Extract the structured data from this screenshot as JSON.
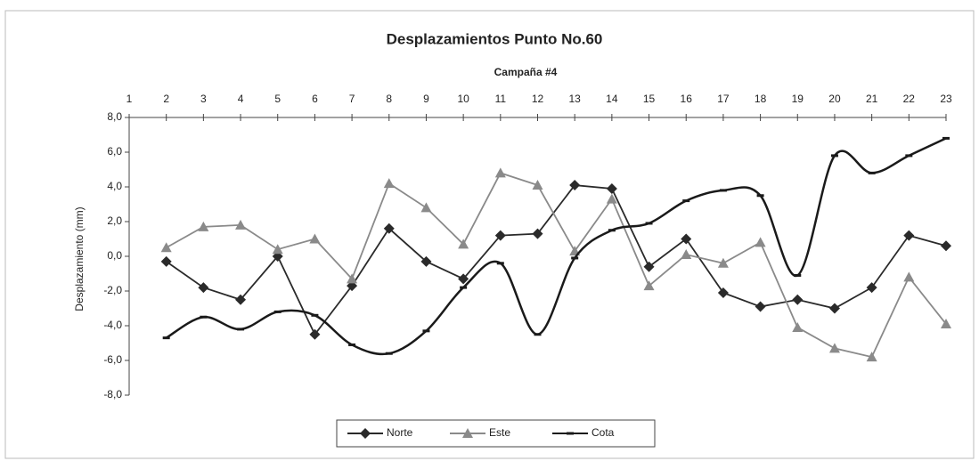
{
  "chart_data": {
    "type": "line",
    "title": "Desplazamientos Punto No.60",
    "x_label": "Campaña #4",
    "y_label": "Desplazamiento (mm)",
    "x": [
      2,
      3,
      4,
      5,
      6,
      7,
      8,
      9,
      10,
      11,
      12,
      13,
      14,
      15,
      16,
      17,
      18,
      19,
      20,
      21,
      22,
      23
    ],
    "xlim": [
      1,
      23
    ],
    "xticks": [
      1,
      2,
      3,
      4,
      5,
      6,
      7,
      8,
      9,
      10,
      11,
      12,
      13,
      14,
      15,
      16,
      17,
      18,
      19,
      20,
      21,
      22,
      23
    ],
    "ylim": [
      -8,
      8
    ],
    "yticks": [
      {
        "value": 8,
        "label": "8,0"
      },
      {
        "value": 6,
        "label": "6,0"
      },
      {
        "value": 4,
        "label": "4,0"
      },
      {
        "value": 2,
        "label": "2,0"
      },
      {
        "value": 0,
        "label": "0,0"
      },
      {
        "value": -2,
        "label": "-2,0"
      },
      {
        "value": -4,
        "label": "-4,0"
      },
      {
        "value": -6,
        "label": "-6,0"
      },
      {
        "value": -8,
        "label": "-8,0"
      }
    ],
    "legend": "bottom",
    "series": [
      {
        "name": "Norte",
        "color": "#2a2a2a",
        "marker": "diamond",
        "values": [
          -0.3,
          -1.8,
          -2.5,
          0.0,
          -4.5,
          -1.7,
          1.6,
          -0.3,
          -1.3,
          1.2,
          1.3,
          4.1,
          3.9,
          -0.6,
          1.0,
          -2.1,
          -2.9,
          -2.5,
          -3.0,
          -1.8,
          1.2,
          0.6
        ]
      },
      {
        "name": "Este",
        "color": "#8a8a8a",
        "marker": "triangle",
        "values": [
          0.5,
          1.7,
          1.8,
          0.4,
          1.0,
          -1.3,
          4.2,
          2.8,
          0.7,
          4.8,
          4.1,
          0.3,
          3.3,
          -1.7,
          0.1,
          -0.4,
          0.8,
          -4.1,
          -5.3,
          -5.8,
          -1.2,
          -3.9
        ]
      },
      {
        "name": "Cota",
        "color": "#1a1a1a",
        "marker": "dash",
        "smooth": true,
        "values": [
          -4.7,
          -3.5,
          -4.2,
          -3.2,
          -3.4,
          -5.1,
          -5.6,
          -4.3,
          -1.8,
          -0.4,
          -4.5,
          -0.1,
          1.5,
          1.9,
          3.2,
          3.8,
          3.5,
          -1.1,
          5.8,
          4.8,
          5.8,
          6.8
        ]
      }
    ]
  }
}
